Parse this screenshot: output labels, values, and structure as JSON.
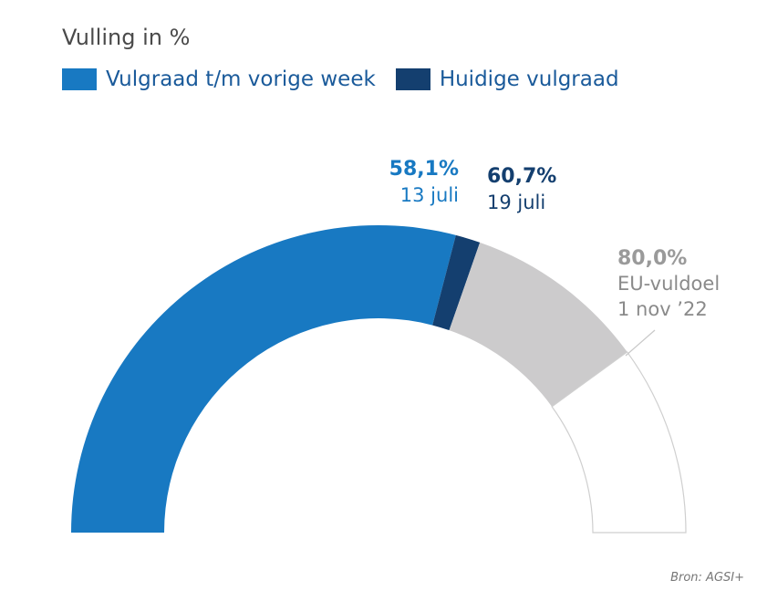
{
  "title": "Vulling in %",
  "legend": [
    {
      "label": "Vulgraad t/m vorige week",
      "color": "#1879c2"
    },
    {
      "label": "Huidige vulgraad",
      "color": "#143f6f"
    }
  ],
  "source": "Bron: AGSI+",
  "chart_data": {
    "type": "gauge",
    "range": [
      0,
      100
    ],
    "segments": [
      {
        "name": "Vulgraad t/m vorige week",
        "from": 0,
        "to": 58.1,
        "color": "#1879c2"
      },
      {
        "name": "Huidige vulgraad",
        "from": 58.1,
        "to": 60.7,
        "color": "#143f6f"
      },
      {
        "from": 60.7,
        "to": 80.0,
        "color": "#cccbcc"
      },
      {
        "from": 80.0,
        "to": 100,
        "color": "#ffffff"
      }
    ],
    "annotations": [
      {
        "value_text": "58,1%",
        "text": "13 juli",
        "color": "#1879c2"
      },
      {
        "value_text": "60,7%",
        "text": "19 juli",
        "color": "#143f6f"
      },
      {
        "value_text": "80,0%",
        "lines": [
          "EU-vuldoel",
          "1 nov ’22"
        ],
        "color": "#9a9a9a"
      }
    ]
  }
}
